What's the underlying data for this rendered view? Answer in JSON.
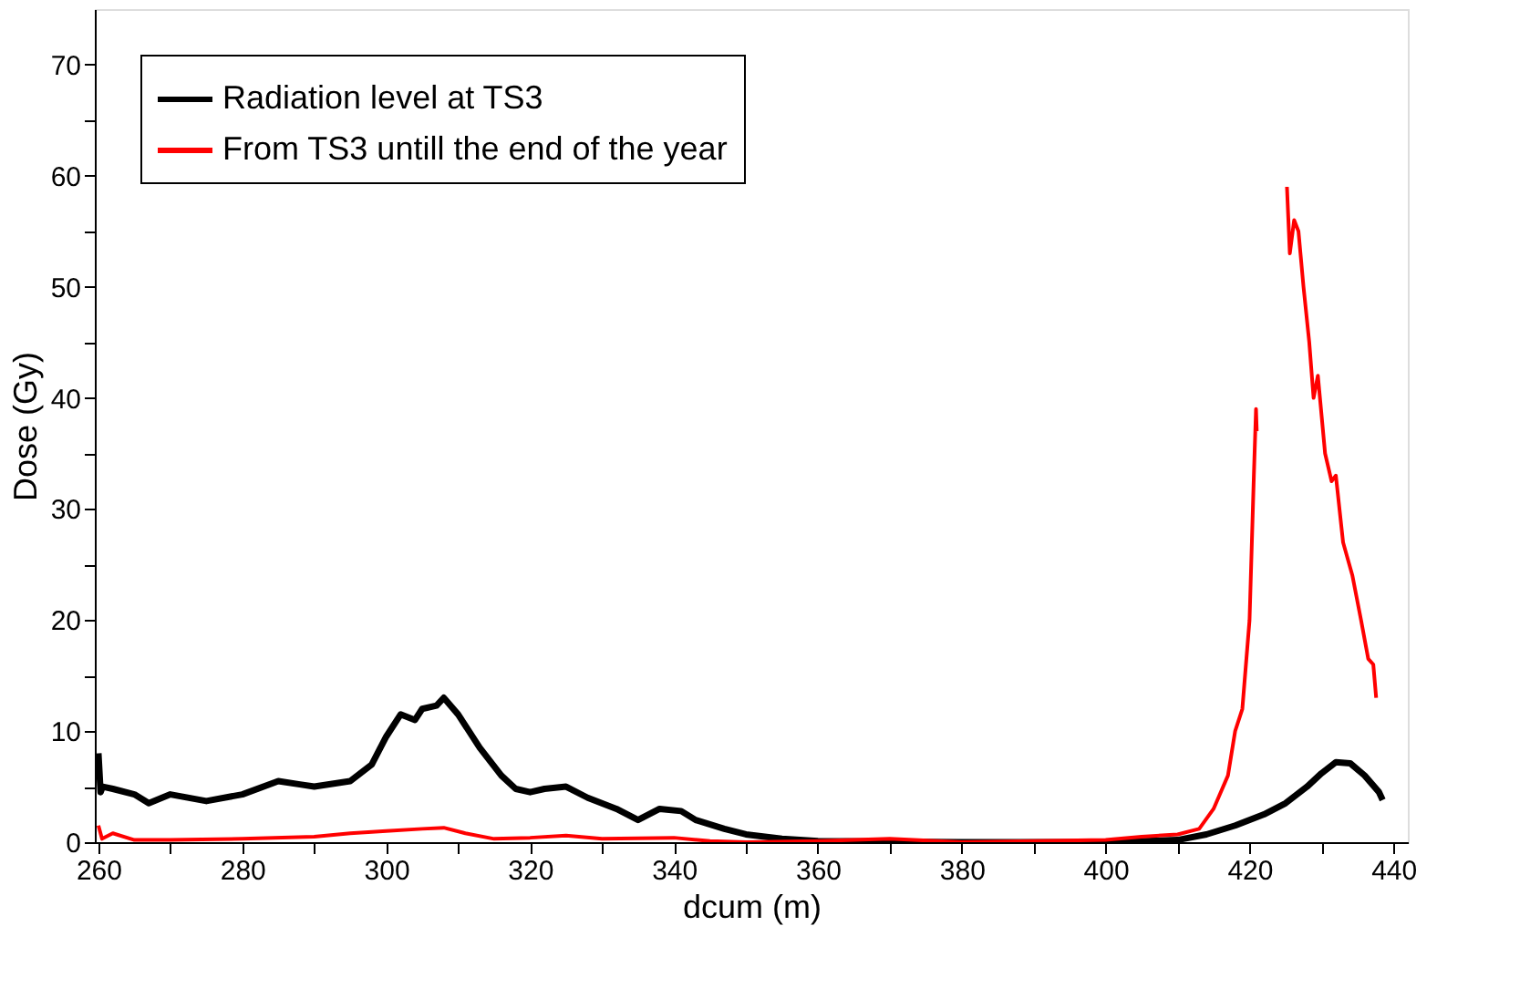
{
  "chart_data": {
    "type": "line",
    "xlabel": "dcum (m)",
    "ylabel": "Dose (Gy)",
    "xlim": [
      259.5,
      442
    ],
    "ylim": [
      0,
      75
    ],
    "xticks": [
      260,
      {
        "value": 270,
        "label": null
      },
      280,
      {
        "value": 290,
        "label": null
      },
      300,
      {
        "value": 310,
        "label": null
      },
      320,
      {
        "value": 330,
        "label": null
      },
      340,
      {
        "value": 350,
        "label": null
      },
      360,
      {
        "value": 370,
        "label": null
      },
      380,
      {
        "value": 390,
        "label": null
      },
      400,
      {
        "value": 410,
        "label": null
      },
      420,
      {
        "value": 430,
        "label": null
      },
      440
    ],
    "yticks": [
      0,
      {
        "value": 5,
        "label": null
      },
      10,
      {
        "value": 15,
        "label": null
      },
      20,
      {
        "value": 25,
        "label": null
      },
      30,
      {
        "value": 35,
        "label": null
      },
      40,
      {
        "value": 45,
        "label": null
      },
      50,
      {
        "value": 55,
        "label": null
      },
      60,
      {
        "value": 65,
        "label": null
      },
      70
    ],
    "grid": false,
    "legend": "top left",
    "line_style": "solid",
    "marker": "none",
    "series": [
      {
        "name": "Radiation level at TS3",
        "color": "#000000",
        "x": [
          260,
          260.3,
          260.6,
          262,
          265,
          267,
          270,
          275,
          280,
          285,
          288,
          290,
          295,
          298,
          300,
          302,
          304,
          305,
          307,
          308,
          310,
          313,
          316,
          318,
          320,
          322,
          325,
          328,
          332,
          335,
          338,
          341,
          343,
          347,
          350,
          355,
          360,
          380,
          400,
          410,
          414,
          418,
          422,
          425,
          428,
          430,
          432,
          434,
          436,
          438,
          438.5
        ],
        "values": [
          8.0,
          4.5,
          5.0,
          4.8,
          4.3,
          3.5,
          4.3,
          3.7,
          4.3,
          5.5,
          5.2,
          5.0,
          5.5,
          7.0,
          9.5,
          11.5,
          11.0,
          12.0,
          12.3,
          13.0,
          11.5,
          8.5,
          6.0,
          4.8,
          4.5,
          4.8,
          5.0,
          4.0,
          3.0,
          2.0,
          3.0,
          2.8,
          2.0,
          1.2,
          0.7,
          0.3,
          0.1,
          0.0,
          0.0,
          0.2,
          0.7,
          1.5,
          2.5,
          3.5,
          5.0,
          6.2,
          7.2,
          7.1,
          6.0,
          4.5,
          3.8
        ]
      },
      {
        "name": "From TS3 untill the end of the year",
        "color": "#ff0000",
        "x": [
          260,
          260.5,
          262,
          265,
          270,
          280,
          290,
          295,
          300,
          305,
          308,
          311,
          315,
          320,
          325,
          330,
          340,
          345,
          350,
          360,
          370,
          380,
          400,
          405,
          410,
          413,
          415,
          417,
          418,
          419,
          420,
          420.6,
          420.9,
          421,
          423,
          425.2,
          425.6,
          426.2,
          426.8,
          427.5,
          428.3,
          428.9,
          429.5,
          430.5,
          431.4,
          432,
          433,
          434.3,
          435.5,
          436.5,
          437.2,
          437.6
        ],
        "values": [
          1.5,
          0.3,
          0.8,
          0.2,
          0.2,
          0.3,
          0.5,
          0.8,
          1.0,
          1.2,
          1.3,
          0.8,
          0.3,
          0.4,
          0.6,
          0.3,
          0.4,
          0.1,
          0.0,
          0.1,
          0.3,
          0.0,
          0.2,
          0.5,
          0.7,
          1.2,
          3.0,
          6.0,
          10.0,
          12.0,
          20.0,
          33.0,
          39.0,
          37.0,
          null,
          59.0,
          53.0,
          56.0,
          55.0,
          50.0,
          45.0,
          40.0,
          42.0,
          35.0,
          32.5,
          33.0,
          27.0,
          24.0,
          20.0,
          16.5,
          16.0,
          13.0
        ]
      }
    ]
  }
}
